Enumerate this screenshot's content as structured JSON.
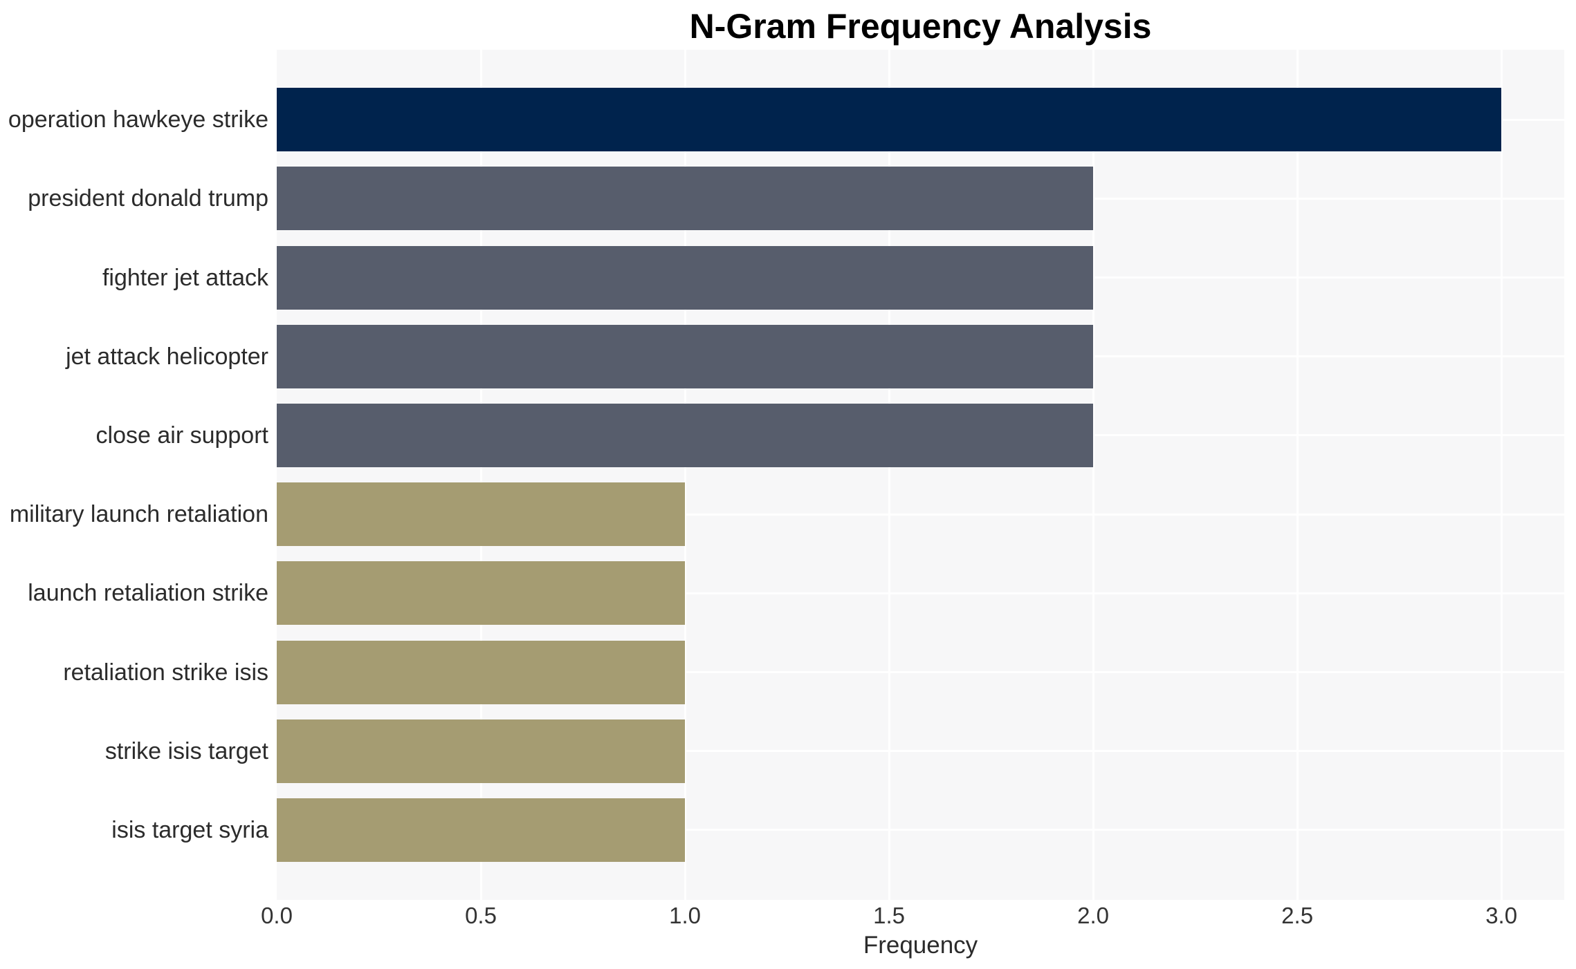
{
  "chart_data": {
    "type": "bar",
    "orientation": "horizontal",
    "title": "N-Gram Frequency Analysis",
    "xlabel": "Frequency",
    "ylabel": "",
    "categories": [
      "operation hawkeye strike",
      "president donald trump",
      "fighter jet attack",
      "jet attack helicopter",
      "close air support",
      "military launch retaliation",
      "launch retaliation strike",
      "retaliation strike isis",
      "strike isis target",
      "isis target syria"
    ],
    "values": [
      3,
      2,
      2,
      2,
      2,
      1,
      1,
      1,
      1,
      1
    ],
    "bar_colors": [
      "#00234D",
      "#575D6C",
      "#575D6C",
      "#575D6C",
      "#575D6C",
      "#A59C72",
      "#A59C72",
      "#A59C72",
      "#A59C72",
      "#A59C72"
    ],
    "xticks": [
      {
        "value": 0.0,
        "label": "0.0"
      },
      {
        "value": 0.5,
        "label": "0.5"
      },
      {
        "value": 1.0,
        "label": "1.0"
      },
      {
        "value": 1.5,
        "label": "1.5"
      },
      {
        "value": 2.0,
        "label": "2.0"
      },
      {
        "value": 2.5,
        "label": "2.5"
      },
      {
        "value": 3.0,
        "label": "3.0"
      }
    ],
    "xlim": [
      0,
      3.154
    ],
    "grid": true,
    "legend_position": "none",
    "plot_background": "#F7F7F8",
    "grid_color": "#FFFFFF"
  }
}
